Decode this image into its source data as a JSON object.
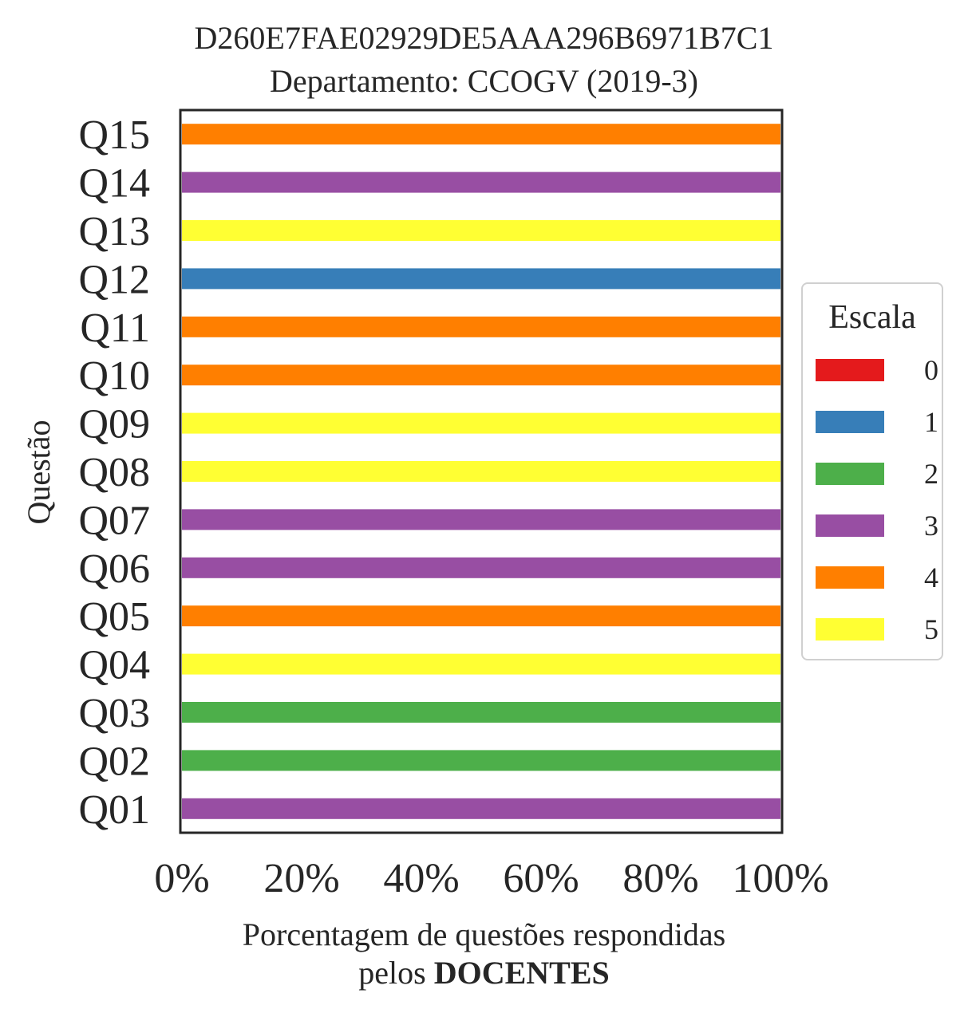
{
  "chart_data": {
    "type": "bar",
    "orientation": "horizontal",
    "stacked": true,
    "title": "D260E7FAE02929DE5AAA296B6971B7C1",
    "subtitle": "Departamento: CCOGV (2019-3)",
    "ylabel": "Questão",
    "xlabel_line1": "Porcentagem de questões respondidas",
    "xlabel_line2_prefix": "pelos",
    "xlabel_line2_bold": "DOCENTES",
    "xlim": [
      0,
      100
    ],
    "xticks": [
      "0%",
      "20%",
      "40%",
      "60%",
      "80%",
      "100%"
    ],
    "categories": [
      "Q01",
      "Q02",
      "Q03",
      "Q04",
      "Q05",
      "Q06",
      "Q07",
      "Q08",
      "Q09",
      "Q10",
      "Q11",
      "Q12",
      "Q13",
      "Q14",
      "Q15"
    ],
    "responses": [
      3,
      2,
      2,
      5,
      4,
      3,
      3,
      5,
      5,
      4,
      4,
      1,
      5,
      3,
      4
    ],
    "value_percent": 100,
    "grid": false,
    "legend": {
      "title": "Escala",
      "position": "right",
      "entries": [
        {
          "label": "0",
          "color": "#e41a1c"
        },
        {
          "label": "1",
          "color": "#377eb8"
        },
        {
          "label": "2",
          "color": "#4daf4a"
        },
        {
          "label": "3",
          "color": "#984ea3"
        },
        {
          "label": "4",
          "color": "#ff7f00"
        },
        {
          "label": "5",
          "color": "#ffff33"
        }
      ]
    }
  }
}
